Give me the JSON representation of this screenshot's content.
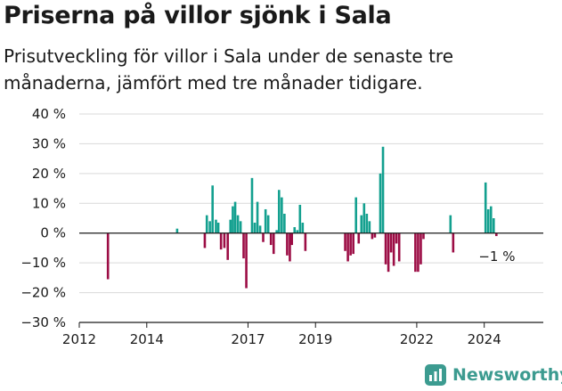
{
  "colors": {
    "positive": "#13a08f",
    "negative": "#9c0d45",
    "grid": "#d9d9d9",
    "axis": "#1a1a1a",
    "brand": "#3c9b90"
  },
  "brand": {
    "name": "Newsworthy",
    "icon": "newsworthy-logo-icon"
  },
  "chart_data": {
    "type": "bar",
    "title": "Priserna på villor sjönk i Sala",
    "subtitle": "Prisutveckling för villor i Sala under de senaste tre månaderna, jämfört med tre månader tidigare.",
    "xlabel": "",
    "ylabel": "",
    "unit": "%",
    "ylim": [
      -30,
      40
    ],
    "yticks": [
      40,
      30,
      20,
      10,
      0,
      -10,
      -20,
      -30
    ],
    "ytick_labels": [
      "40 %",
      "30 %",
      "20 %",
      "10 %",
      "0 %",
      "−10 %",
      "−20 %",
      "−30 %"
    ],
    "xlim": [
      2012,
      2025.75
    ],
    "xticks": [
      2012,
      2014,
      2017,
      2019,
      2022,
      2024
    ],
    "xtick_labels": [
      "2012",
      "2014",
      "2017",
      "2019",
      "2022",
      "2024"
    ],
    "grid": true,
    "last_value_label": "−1 %",
    "series": [
      {
        "name": "Prisutveckling",
        "x": [
          2012.85,
          2014.9,
          2015.72,
          2015.78,
          2015.87,
          2015.95,
          2016.05,
          2016.12,
          2016.2,
          2016.3,
          2016.4,
          2016.48,
          2016.55,
          2016.62,
          2016.7,
          2016.78,
          2016.87,
          2016.95,
          2017.03,
          2017.12,
          2017.2,
          2017.28,
          2017.36,
          2017.45,
          2017.52,
          2017.6,
          2017.68,
          2017.76,
          2017.85,
          2017.92,
          2018.0,
          2018.08,
          2018.16,
          2018.24,
          2018.3,
          2018.38,
          2018.46,
          2018.54,
          2018.62,
          2018.7,
          2018.78,
          2018.86,
          2019.0,
          2019.08,
          2019.16,
          2019.24,
          2019.3,
          2019.4,
          2019.48,
          2019.56,
          2019.64,
          2019.72,
          2019.8,
          2019.88,
          2019.96,
          2020.04,
          2020.12,
          2020.2,
          2020.28,
          2020.36,
          2020.44,
          2020.52,
          2020.6,
          2020.68,
          2020.76,
          2020.84,
          2020.92,
          2021.0,
          2021.08,
          2021.16,
          2021.24,
          2021.32,
          2021.4,
          2021.48,
          2021.56,
          2021.64,
          2021.72,
          2021.8,
          2021.88,
          2021.96,
          2022.04,
          2022.12,
          2022.2,
          2022.28,
          2022.36,
          2022.44,
          2022.52,
          2022.6,
          2022.68,
          2022.76,
          2022.84,
          2022.92,
          2023.0,
          2023.08,
          2023.16,
          2023.24,
          2023.32,
          2023.4,
          2023.48,
          2023.56,
          2023.64,
          2023.72,
          2023.8,
          2023.88,
          2023.96,
          2024.04,
          2024.12,
          2024.2,
          2024.28,
          2024.36,
          2024.44,
          2024.52,
          2024.6,
          2024.68,
          2024.76,
          2024.84
        ],
        "values": [
          -15.5,
          1.5,
          -5,
          6,
          4,
          16,
          4.5,
          3.5,
          -5.5,
          -5,
          -9,
          4.5,
          9,
          10.5,
          6,
          4,
          -8.5,
          -18.5,
          0,
          18.5,
          3.5,
          10.5,
          2.5,
          -3,
          8,
          6,
          -4,
          -7,
          1,
          14.5,
          12,
          6.5,
          -7.5,
          -9.5,
          -4,
          2,
          1,
          9.5,
          3.5,
          -6,
          0,
          0,
          0,
          0,
          0,
          0,
          0,
          0,
          0,
          0,
          0,
          0,
          0,
          -6,
          -9.5,
          -7.5,
          -7,
          12,
          -3.5,
          6,
          10,
          6.5,
          4,
          -2,
          -1.5,
          0,
          20,
          29,
          -10.5,
          -13,
          -6.5,
          -11,
          -3.5,
          -9.5,
          0,
          0,
          0,
          0,
          0,
          -13,
          -13,
          -10.5,
          -2,
          0,
          0,
          0,
          0,
          0,
          0,
          0,
          0,
          0,
          6,
          -6.5,
          0,
          0,
          0,
          0,
          0,
          0,
          0,
          0,
          0,
          0,
          0,
          17,
          8,
          9,
          5,
          -1,
          0,
          0,
          0,
          0,
          0,
          0
        ]
      }
    ]
  }
}
